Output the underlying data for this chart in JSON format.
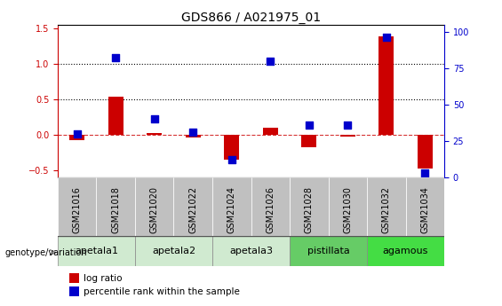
{
  "title": "GDS866 / A021975_01",
  "samples": [
    "GSM21016",
    "GSM21018",
    "GSM21020",
    "GSM21022",
    "GSM21024",
    "GSM21026",
    "GSM21028",
    "GSM21030",
    "GSM21032",
    "GSM21034"
  ],
  "log_ratio": [
    -0.08,
    0.53,
    0.03,
    -0.04,
    -0.35,
    0.1,
    -0.18,
    -0.02,
    1.38,
    -0.47
  ],
  "percentile_rank": [
    30,
    82,
    40,
    31,
    12,
    80,
    36,
    36,
    96,
    3
  ],
  "groups": [
    {
      "label": "apetala1",
      "start": 0,
      "end": 2,
      "color": "#d0ead0"
    },
    {
      "label": "apetala2",
      "start": 2,
      "end": 4,
      "color": "#d0ead0"
    },
    {
      "label": "apetala3",
      "start": 4,
      "end": 6,
      "color": "#d0ead0"
    },
    {
      "label": "pistillata",
      "start": 6,
      "end": 8,
      "color": "#66cc66"
    },
    {
      "label": "agamous",
      "start": 8,
      "end": 10,
      "color": "#44dd44"
    }
  ],
  "ylim_left": [
    -0.6,
    1.55
  ],
  "ylim_right": [
    0,
    105
  ],
  "yticks_left": [
    -0.5,
    0.0,
    0.5,
    1.0,
    1.5
  ],
  "yticks_right": [
    0,
    25,
    50,
    75,
    100
  ],
  "hlines_dotted": [
    0.5,
    1.0
  ],
  "bar_color": "#cc0000",
  "dot_color": "#0000cc",
  "zero_line_color": "#cc0000",
  "dot_size": 28,
  "bar_width": 0.4,
  "sample_row_color": "#c0c0c0",
  "legend_bar_label": "log ratio",
  "legend_dot_label": "percentile rank within the sample",
  "title_fontsize": 10,
  "tick_fontsize": 7,
  "label_fontsize": 7.5,
  "group_fontsize": 8
}
